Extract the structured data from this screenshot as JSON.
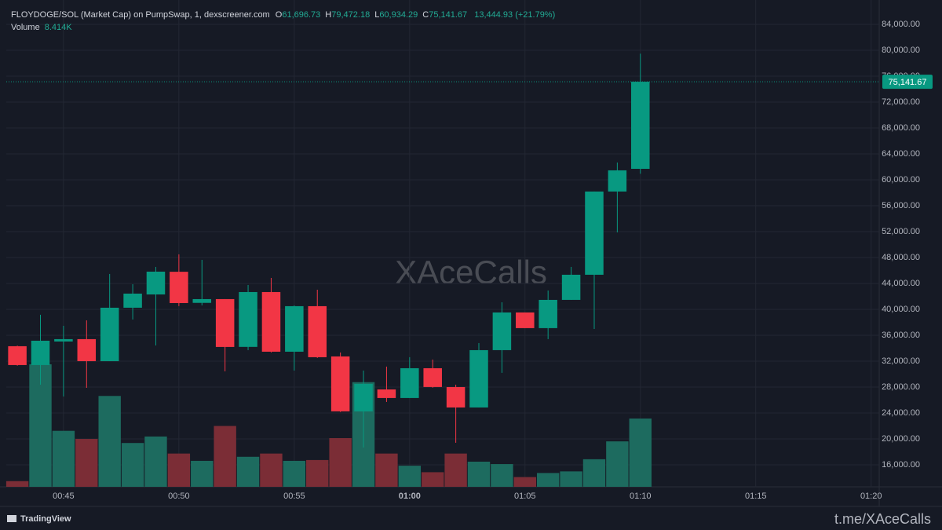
{
  "chart_data": {
    "type": "candlestick",
    "title": "FLOYDOGE/SOL (Market Cap) on PumpSwap, 1, dexscreener.com",
    "ohlc_legend": [
      {
        "key": "O",
        "label": "61,696.73"
      },
      {
        "key": "H",
        "label": "79,472.18"
      },
      {
        "key": "L",
        "label": "60,934.29"
      },
      {
        "key": "C",
        "label": "75,141.67"
      }
    ],
    "change_label": "13,444.93 (+21.79%)",
    "volume_name": "Volume",
    "volume_value_label": "8.414K",
    "watermark": "XAceCalls",
    "brand": "TradingView",
    "footer_link": "t.me/XAceCalls",
    "x": [
      43,
      44,
      45,
      46,
      47,
      48,
      49,
      50,
      51,
      52,
      53,
      54,
      55,
      56,
      57,
      58,
      59,
      60,
      61,
      62,
      63,
      64,
      65,
      66,
      67,
      68,
      69,
      70
    ],
    "open": [
      34308,
      31400,
      35035,
      35400,
      32000,
      40250,
      42300,
      45800,
      41000,
      41580,
      34200,
      42670,
      33460,
      40490,
      32730,
      24240,
      27640,
      26310,
      30910,
      28000,
      24850,
      33700,
      39520,
      37100,
      41460,
      45340,
      58190,
      61696.73
    ],
    "high": [
      34400,
      39160,
      37460,
      38300,
      45460,
      43880,
      46550,
      48490,
      47640,
      41580,
      43760,
      44850,
      40600,
      43030,
      33340,
      30550,
      31160,
      32610,
      32250,
      28370,
      34790,
      41090,
      39520,
      42910,
      46550,
      58190,
      62670,
      79472.18
    ],
    "low": [
      31300,
      28370,
      26550,
      27880,
      32000,
      38430,
      34430,
      40500,
      40610,
      30430,
      33700,
      33340,
      30550,
      32500,
      24150,
      18670,
      25700,
      26310,
      27900,
      19400,
      24850,
      30190,
      37100,
      35400,
      41460,
      36970,
      51880,
      60934.29
    ],
    "close": [
      31399,
      35156,
      35400,
      32000,
      40250,
      42430,
      45820,
      40970,
      41580,
      34190,
      42670,
      33460,
      40490,
      32610,
      24250,
      28490,
      26310,
      30910,
      28010,
      24850,
      33700,
      39520,
      37100,
      41460,
      45340,
      58190,
      61460,
      75141.67
    ],
    "volume": [
      0.7,
      15.1,
      6.9,
      5.9,
      11.2,
      5.4,
      6.2,
      4.1,
      3.2,
      7.5,
      3.7,
      4.1,
      3.2,
      3.3,
      6.0,
      12.9,
      4.1,
      2.6,
      1.8,
      4.1,
      3.1,
      2.8,
      1.2,
      1.7,
      1.9,
      3.4,
      5.6,
      8.414
    ],
    "up_color": "#089981",
    "down_color": "#f23645",
    "up_volume_color": "#1d6b5f",
    "down_volume_color": "#7b2d36",
    "xlim": [
      42.52,
      80.35
    ],
    "ylim": [
      12600,
      87760
    ],
    "volume_ylim": [
      0,
      60
    ],
    "grid": true,
    "xticks": [
      {
        "value": 45,
        "label": "00:45"
      },
      {
        "value": 50,
        "label": "00:50"
      },
      {
        "value": 55,
        "label": "00:55"
      },
      {
        "value": 60,
        "label": "01:00"
      },
      {
        "value": 65,
        "label": "01:05"
      },
      {
        "value": 70,
        "label": "01:10"
      },
      {
        "value": 75,
        "label": "01:15"
      },
      {
        "value": 80,
        "label": "01:20"
      }
    ],
    "yticks": [
      {
        "value": 16000,
        "label": "16,000.00"
      },
      {
        "value": 20000,
        "label": "20,000.00"
      },
      {
        "value": 24000,
        "label": "24,000.00"
      },
      {
        "value": 28000,
        "label": "28,000.00"
      },
      {
        "value": 32000,
        "label": "32,000.00"
      },
      {
        "value": 36000,
        "label": "36,000.00"
      },
      {
        "value": 40000,
        "label": "40,000.00"
      },
      {
        "value": 44000,
        "label": "44,000.00"
      },
      {
        "value": 48000,
        "label": "48,000.00"
      },
      {
        "value": 52000,
        "label": "52,000.00"
      },
      {
        "value": 56000,
        "label": "56,000.00"
      },
      {
        "value": 60000,
        "label": "60,000.00"
      },
      {
        "value": 64000,
        "label": "64,000.00"
      },
      {
        "value": 68000,
        "label": "68,000.00"
      },
      {
        "value": 72000,
        "label": "72,000.00"
      },
      {
        "value": 76000,
        "label": "76,000.00"
      },
      {
        "value": 80000,
        "label": "80,000.00"
      },
      {
        "value": 84000,
        "label": "84,000.00"
      }
    ]
  }
}
